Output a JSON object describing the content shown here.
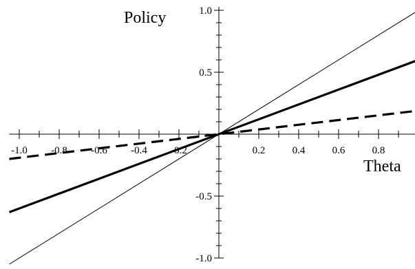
{
  "chart_data": {
    "type": "line",
    "title": "",
    "xlabel": "Theta",
    "ylabel": "Policy",
    "xlim": [
      -1.05,
      1.0
    ],
    "ylim": [
      -1.0,
      1.0
    ],
    "grid": false,
    "x_ticks": [
      -1.0,
      -0.8,
      -0.6,
      -0.4,
      -0.2,
      0.2,
      0.4,
      0.6,
      0.8
    ],
    "x_tick_labels": [
      "-1.0",
      "-0.8",
      "-0.6",
      "-0.4",
      "-0.2",
      "0.2",
      "0.4",
      "0.6",
      "0.8"
    ],
    "y_ticks": [
      1.0,
      0.5,
      -0.5,
      -1.0
    ],
    "y_tick_labels": [
      "1.0",
      "0.5",
      "-0.5",
      "-1.0"
    ],
    "series": [
      {
        "style": "thin-solid",
        "x": [
          -1.05,
          1.0
        ],
        "y": [
          -1.05,
          1.0
        ]
      },
      {
        "style": "thick-solid",
        "x": [
          -1.05,
          1.0
        ],
        "y": [
          -0.63,
          0.6
        ]
      },
      {
        "style": "thick-dashed",
        "x": [
          -1.05,
          1.0
        ],
        "y": [
          -0.2,
          0.19
        ]
      }
    ]
  }
}
